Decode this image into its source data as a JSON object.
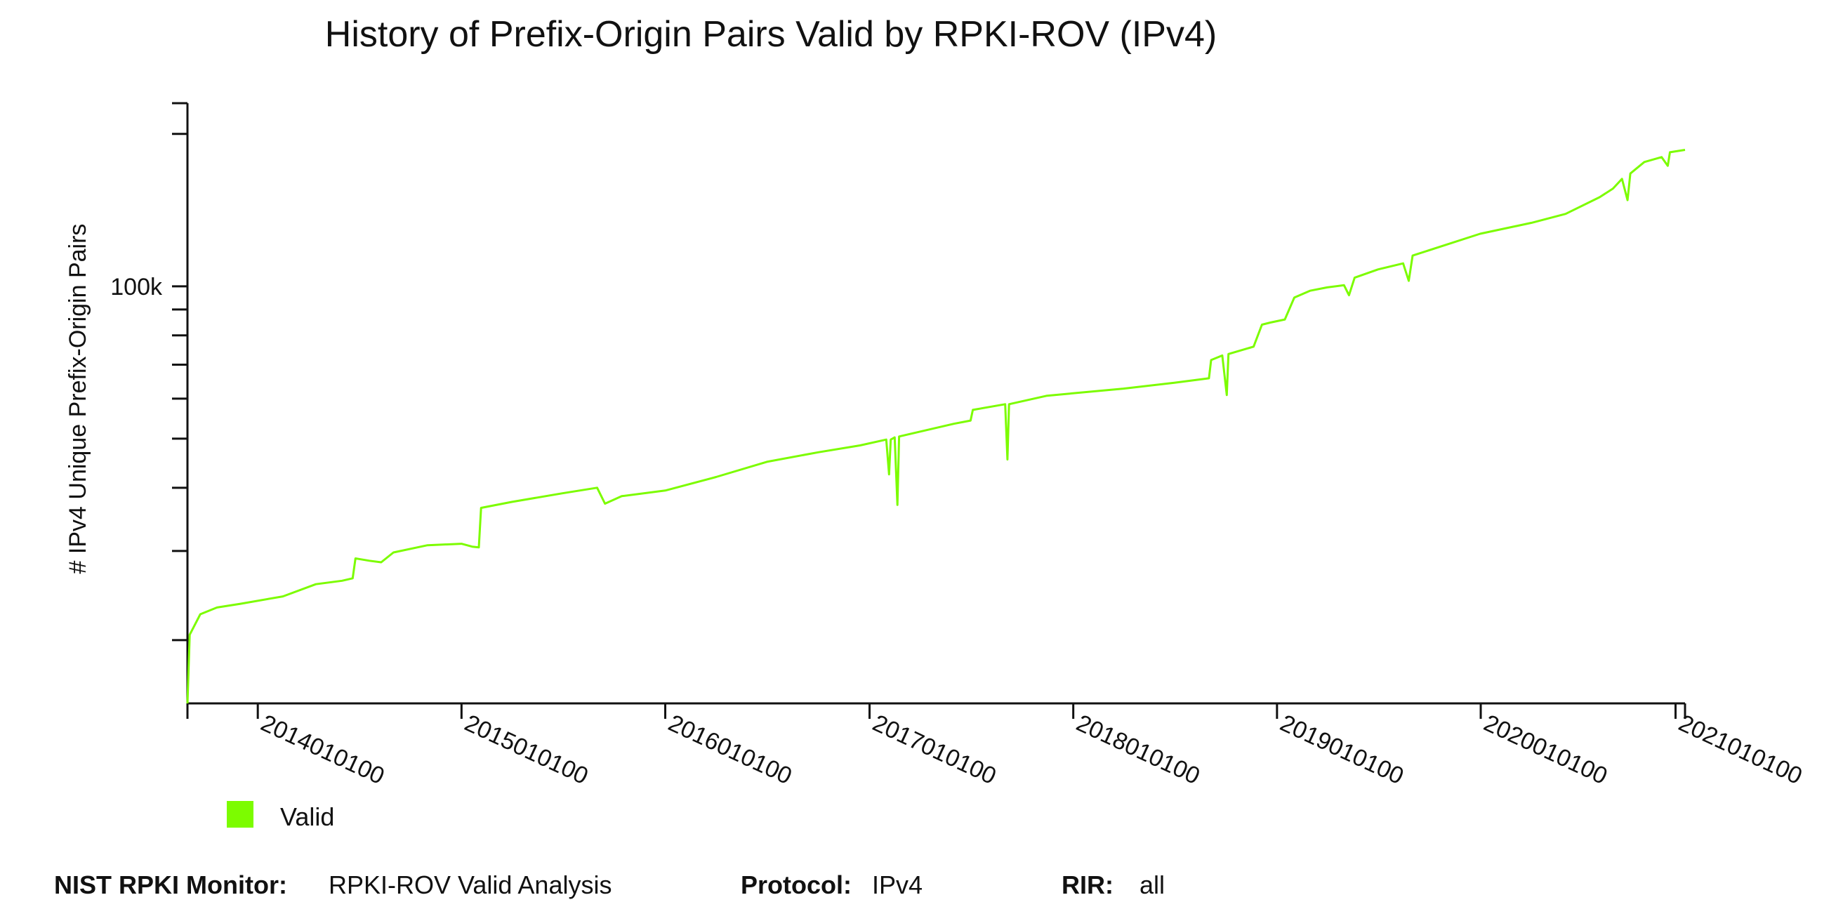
{
  "chart_data": {
    "type": "line",
    "title": "History of Prefix-Origin Pairs Valid by RPKI-ROV (IPv4)",
    "xlabel": "",
    "ylabel": "# IPv4 Unique Prefix-Origin Pairs",
    "y_scale": "log",
    "y_tick_labels": [
      {
        "value": 100000,
        "label": "100k"
      }
    ],
    "y_minor_ticks": [
      20000,
      30000,
      40000,
      50000,
      60000,
      70000,
      80000,
      90000,
      200000
    ],
    "ylim": [
      15000,
      230000
    ],
    "xlim": [
      "2013-08-28",
      "2021-01-01"
    ],
    "x_ticks": [
      {
        "date": "2014-01-01",
        "label": "2014010100"
      },
      {
        "date": "2015-01-01",
        "label": "2015010100"
      },
      {
        "date": "2016-01-01",
        "label": "2016010100"
      },
      {
        "date": "2017-01-01",
        "label": "2017010100"
      },
      {
        "date": "2018-01-01",
        "label": "2018010100"
      },
      {
        "date": "2019-01-01",
        "label": "2019010100"
      },
      {
        "date": "2020-01-01",
        "label": "2020010100"
      },
      {
        "date": "2020-12-15",
        "label": "2021010100"
      }
    ],
    "legend": {
      "position": "bottom-left",
      "entries": [
        {
          "label": "Valid",
          "color": "#7cfc00"
        }
      ]
    },
    "series": [
      {
        "name": "Valid",
        "color": "#7cfc00",
        "points": [
          [
            "2013-08-28",
            15000
          ],
          [
            "2013-09-01",
            20500
          ],
          [
            "2013-09-20",
            22500
          ],
          [
            "2013-10-20",
            23200
          ],
          [
            "2013-12-01",
            23600
          ],
          [
            "2014-02-15",
            24400
          ],
          [
            "2014-04-15",
            25800
          ],
          [
            "2014-06-01",
            26200
          ],
          [
            "2014-06-20",
            26500
          ],
          [
            "2014-06-25",
            29000
          ],
          [
            "2014-07-20",
            28700
          ],
          [
            "2014-08-10",
            28500
          ],
          [
            "2014-09-01",
            29800
          ],
          [
            "2014-11-01",
            30800
          ],
          [
            "2015-01-01",
            31000
          ],
          [
            "2015-01-20",
            30600
          ],
          [
            "2015-02-01",
            30500
          ],
          [
            "2015-02-05",
            36500
          ],
          [
            "2015-04-01",
            37500
          ],
          [
            "2015-07-01",
            39000
          ],
          [
            "2015-09-01",
            40000
          ],
          [
            "2015-09-15",
            37200
          ],
          [
            "2015-10-15",
            38500
          ],
          [
            "2016-01-01",
            39500
          ],
          [
            "2016-04-01",
            42000
          ],
          [
            "2016-07-01",
            45000
          ],
          [
            "2016-10-01",
            47000
          ],
          [
            "2016-12-15",
            48500
          ],
          [
            "2017-01-31",
            49800
          ],
          [
            "2017-02-05",
            42500
          ],
          [
            "2017-02-08",
            49800
          ],
          [
            "2017-02-15",
            50300
          ],
          [
            "2017-02-20",
            37000
          ],
          [
            "2017-02-23",
            50500
          ],
          [
            "2017-06-01",
            53500
          ],
          [
            "2017-07-01",
            54300
          ],
          [
            "2017-07-05",
            57000
          ],
          [
            "2017-09-01",
            58500
          ],
          [
            "2017-09-05",
            45500
          ],
          [
            "2017-09-08",
            58500
          ],
          [
            "2017-11-15",
            60800
          ],
          [
            "2018-04-01",
            62800
          ],
          [
            "2018-07-01",
            64500
          ],
          [
            "2018-09-01",
            65800
          ],
          [
            "2018-09-05",
            71500
          ],
          [
            "2018-09-25",
            73000
          ],
          [
            "2018-10-03",
            61000
          ],
          [
            "2018-10-06",
            73500
          ],
          [
            "2018-11-20",
            76000
          ],
          [
            "2018-12-05",
            84000
          ],
          [
            "2018-12-20",
            84800
          ],
          [
            "2019-01-15",
            86000
          ],
          [
            "2019-02-01",
            95000
          ],
          [
            "2019-03-01",
            98000
          ],
          [
            "2019-04-01",
            99500
          ],
          [
            "2019-05-01",
            100500
          ],
          [
            "2019-05-10",
            96000
          ],
          [
            "2019-05-20",
            104000
          ],
          [
            "2019-07-01",
            108000
          ],
          [
            "2019-08-15",
            111000
          ],
          [
            "2019-08-25",
            102500
          ],
          [
            "2019-09-01",
            115000
          ],
          [
            "2019-12-31",
            127000
          ],
          [
            "2020-04-01",
            133500
          ],
          [
            "2020-06-01",
            139000
          ],
          [
            "2020-08-01",
            150000
          ],
          [
            "2020-08-25",
            156000
          ],
          [
            "2020-09-10",
            163000
          ],
          [
            "2020-09-20",
            148000
          ],
          [
            "2020-09-25",
            167000
          ],
          [
            "2020-10-20",
            176000
          ],
          [
            "2020-11-20",
            180000
          ],
          [
            "2020-12-01",
            173000
          ],
          [
            "2020-12-05",
            184000
          ],
          [
            "2021-01-01",
            186000
          ]
        ]
      }
    ]
  },
  "footer": {
    "monitor_key": "NIST RPKI Monitor:",
    "monitor_value": "RPKI-ROV Valid Analysis",
    "protocol_key": "Protocol:",
    "protocol_value": "IPv4",
    "rir_key": "RIR:",
    "rir_value": "all"
  }
}
